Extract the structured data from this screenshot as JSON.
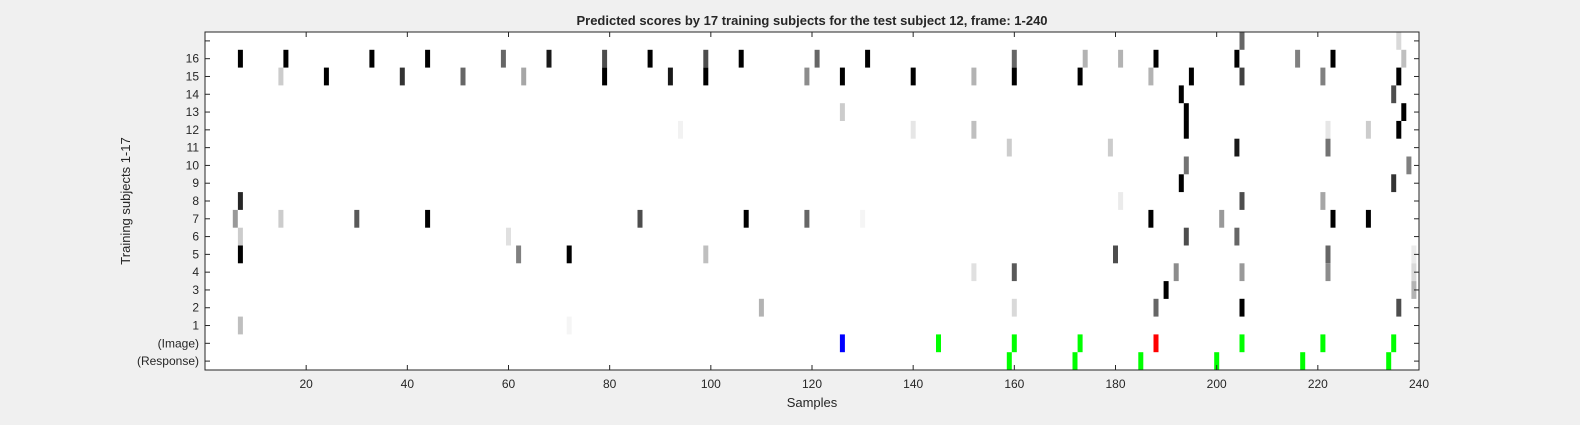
{
  "chart_data": {
    "type": "heatmap",
    "title": "Predicted scores by 17 training subjects for the test subject 12, frame: 1-240",
    "xlabel": "Samples",
    "ylabel": "Training subjects 1-17",
    "xlim": [
      0,
      240
    ],
    "xticks": [
      20,
      40,
      60,
      80,
      100,
      120,
      140,
      160,
      180,
      200,
      220,
      240
    ],
    "row_labels": [
      "(Response)",
      "(Image)",
      "1",
      "2",
      "3",
      "4",
      "5",
      "6",
      "7",
      "8",
      "9",
      "10",
      "11",
      "12",
      "13",
      "14",
      "15",
      "16",
      ""
    ],
    "grid": false,
    "value_encoding": "gray level, 1 = black, 0 = white",
    "cells": [
      {
        "row": 18,
        "x": 205,
        "v": 0.6
      },
      {
        "row": 18,
        "x": 236,
        "v": 0.15
      },
      {
        "row": 17,
        "x": 7,
        "v": 1.0
      },
      {
        "row": 17,
        "x": 16,
        "v": 1.0
      },
      {
        "row": 17,
        "x": 33,
        "v": 1.0
      },
      {
        "row": 17,
        "x": 44,
        "v": 1.0
      },
      {
        "row": 17,
        "x": 59,
        "v": 0.6
      },
      {
        "row": 17,
        "x": 68,
        "v": 0.9
      },
      {
        "row": 17,
        "x": 79,
        "v": 0.7
      },
      {
        "row": 17,
        "x": 88,
        "v": 1.0
      },
      {
        "row": 17,
        "x": 99,
        "v": 0.7
      },
      {
        "row": 17,
        "x": 106,
        "v": 1.0
      },
      {
        "row": 17,
        "x": 121,
        "v": 0.6
      },
      {
        "row": 17,
        "x": 131,
        "v": 1.0
      },
      {
        "row": 17,
        "x": 160,
        "v": 0.6
      },
      {
        "row": 17,
        "x": 174,
        "v": 0.3
      },
      {
        "row": 17,
        "x": 181,
        "v": 0.3
      },
      {
        "row": 17,
        "x": 188,
        "v": 1.0
      },
      {
        "row": 17,
        "x": 204,
        "v": 1.0
      },
      {
        "row": 17,
        "x": 216,
        "v": 0.5
      },
      {
        "row": 17,
        "x": 223,
        "v": 1.0
      },
      {
        "row": 17,
        "x": 237,
        "v": 0.25
      },
      {
        "row": 16,
        "x": 15,
        "v": 0.2
      },
      {
        "row": 16,
        "x": 24,
        "v": 1.0
      },
      {
        "row": 16,
        "x": 39,
        "v": 0.8
      },
      {
        "row": 16,
        "x": 51,
        "v": 0.6
      },
      {
        "row": 16,
        "x": 63,
        "v": 0.35
      },
      {
        "row": 16,
        "x": 79,
        "v": 1.0
      },
      {
        "row": 16,
        "x": 92,
        "v": 0.9
      },
      {
        "row": 16,
        "x": 99,
        "v": 1.0
      },
      {
        "row": 16,
        "x": 119,
        "v": 0.45
      },
      {
        "row": 16,
        "x": 126,
        "v": 1.0
      },
      {
        "row": 16,
        "x": 140,
        "v": 1.0
      },
      {
        "row": 16,
        "x": 152,
        "v": 0.3
      },
      {
        "row": 16,
        "x": 160,
        "v": 1.0
      },
      {
        "row": 16,
        "x": 173,
        "v": 1.0
      },
      {
        "row": 16,
        "x": 187,
        "v": 0.3
      },
      {
        "row": 16,
        "x": 195,
        "v": 1.0
      },
      {
        "row": 16,
        "x": 205,
        "v": 0.75
      },
      {
        "row": 16,
        "x": 221,
        "v": 0.5
      },
      {
        "row": 16,
        "x": 236,
        "v": 1.0
      },
      {
        "row": 15,
        "x": 193,
        "v": 1.0
      },
      {
        "row": 15,
        "x": 235,
        "v": 0.7
      },
      {
        "row": 14,
        "x": 126,
        "v": 0.2
      },
      {
        "row": 14,
        "x": 194,
        "v": 1.0
      },
      {
        "row": 14,
        "x": 237,
        "v": 1.0
      },
      {
        "row": 13,
        "x": 94,
        "v": 0.05
      },
      {
        "row": 13,
        "x": 140,
        "v": 0.1
      },
      {
        "row": 13,
        "x": 152,
        "v": 0.25
      },
      {
        "row": 13,
        "x": 194,
        "v": 1.0
      },
      {
        "row": 13,
        "x": 222,
        "v": 0.1
      },
      {
        "row": 13,
        "x": 230,
        "v": 0.2
      },
      {
        "row": 13,
        "x": 236,
        "v": 1.0
      },
      {
        "row": 12,
        "x": 159,
        "v": 0.2
      },
      {
        "row": 12,
        "x": 179,
        "v": 0.2
      },
      {
        "row": 12,
        "x": 204,
        "v": 0.9
      },
      {
        "row": 12,
        "x": 222,
        "v": 0.55
      },
      {
        "row": 11,
        "x": 194,
        "v": 0.55
      },
      {
        "row": 11,
        "x": 238,
        "v": 0.5
      },
      {
        "row": 10,
        "x": 193,
        "v": 1.0
      },
      {
        "row": 10,
        "x": 235,
        "v": 0.8
      },
      {
        "row": 9,
        "x": 7,
        "v": 0.85
      },
      {
        "row": 9,
        "x": 181,
        "v": 0.08
      },
      {
        "row": 9,
        "x": 205,
        "v": 0.7
      },
      {
        "row": 9,
        "x": 221,
        "v": 0.35
      },
      {
        "row": 8,
        "x": 6,
        "v": 0.4
      },
      {
        "row": 8,
        "x": 15,
        "v": 0.2
      },
      {
        "row": 8,
        "x": 30,
        "v": 0.65
      },
      {
        "row": 8,
        "x": 44,
        "v": 1.0
      },
      {
        "row": 8,
        "x": 86,
        "v": 0.7
      },
      {
        "row": 8,
        "x": 107,
        "v": 1.0
      },
      {
        "row": 8,
        "x": 119,
        "v": 0.6
      },
      {
        "row": 8,
        "x": 130,
        "v": 0.04
      },
      {
        "row": 8,
        "x": 187,
        "v": 1.0
      },
      {
        "row": 8,
        "x": 201,
        "v": 0.4
      },
      {
        "row": 8,
        "x": 223,
        "v": 1.0
      },
      {
        "row": 8,
        "x": 230,
        "v": 1.0
      },
      {
        "row": 7,
        "x": 7,
        "v": 0.2
      },
      {
        "row": 7,
        "x": 60,
        "v": 0.12
      },
      {
        "row": 7,
        "x": 194,
        "v": 0.7
      },
      {
        "row": 7,
        "x": 204,
        "v": 0.6
      },
      {
        "row": 6,
        "x": 7,
        "v": 1.0
      },
      {
        "row": 6,
        "x": 62,
        "v": 0.5
      },
      {
        "row": 6,
        "x": 72,
        "v": 1.0
      },
      {
        "row": 6,
        "x": 99,
        "v": 0.25
      },
      {
        "row": 6,
        "x": 180,
        "v": 0.7
      },
      {
        "row": 6,
        "x": 222,
        "v": 0.6
      },
      {
        "row": 6,
        "x": 239,
        "v": 0.08
      },
      {
        "row": 5,
        "x": 152,
        "v": 0.12
      },
      {
        "row": 5,
        "x": 160,
        "v": 0.65
      },
      {
        "row": 5,
        "x": 192,
        "v": 0.45
      },
      {
        "row": 5,
        "x": 205,
        "v": 0.4
      },
      {
        "row": 5,
        "x": 222,
        "v": 0.45
      },
      {
        "row": 5,
        "x": 239,
        "v": 0.15
      },
      {
        "row": 4,
        "x": 190,
        "v": 1.0
      },
      {
        "row": 4,
        "x": 239,
        "v": 0.3
      },
      {
        "row": 3,
        "x": 110,
        "v": 0.3
      },
      {
        "row": 3,
        "x": 160,
        "v": 0.15
      },
      {
        "row": 3,
        "x": 188,
        "v": 0.6
      },
      {
        "row": 3,
        "x": 205,
        "v": 1.0
      },
      {
        "row": 3,
        "x": 236,
        "v": 0.7
      },
      {
        "row": 2,
        "x": 7,
        "v": 0.25
      },
      {
        "row": 2,
        "x": 72,
        "v": 0.04
      }
    ],
    "markers": [
      {
        "row": 1,
        "x": 126,
        "color": "#0000ff"
      },
      {
        "row": 1,
        "x": 145,
        "color": "#00ff00"
      },
      {
        "row": 1,
        "x": 160,
        "color": "#00ff00"
      },
      {
        "row": 1,
        "x": 173,
        "color": "#00ff00"
      },
      {
        "row": 1,
        "x": 188,
        "color": "#ff0000"
      },
      {
        "row": 1,
        "x": 205,
        "color": "#00ff00"
      },
      {
        "row": 1,
        "x": 221,
        "color": "#00ff00"
      },
      {
        "row": 1,
        "x": 235,
        "color": "#00ff00"
      },
      {
        "row": 0,
        "x": 159,
        "color": "#00ff00"
      },
      {
        "row": 0,
        "x": 172,
        "color": "#00ff00"
      },
      {
        "row": 0,
        "x": 185,
        "color": "#00ff00"
      },
      {
        "row": 0,
        "x": 200,
        "color": "#00ff00"
      },
      {
        "row": 0,
        "x": 217,
        "color": "#00ff00"
      },
      {
        "row": 0,
        "x": 234,
        "color": "#00ff00"
      }
    ]
  },
  "colors": {
    "background": "#f0f0f0",
    "axes_background": "#ffffff",
    "axes_line": "#262626",
    "text": "#262626"
  }
}
